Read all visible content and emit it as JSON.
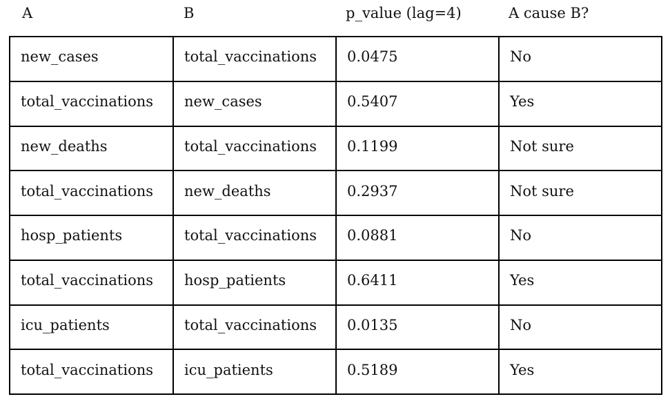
{
  "table": {
    "headers": [
      "A",
      "B",
      "p_value (lag=4)",
      "A cause B?"
    ],
    "rows": [
      [
        "new_cases",
        "total_vaccinations",
        "0.0475",
        "No"
      ],
      [
        "total_vaccinations",
        "new_cases",
        "0.5407",
        "Yes"
      ],
      [
        "new_deaths",
        "total_vaccinations",
        "0.1199",
        "Not sure"
      ],
      [
        "total_vaccinations",
        "new_deaths",
        "0.2937",
        "Not sure"
      ],
      [
        "hosp_patients",
        "total_vaccinations",
        "0.0881",
        "No"
      ],
      [
        "total_vaccinations",
        "hosp_patients",
        "0.6411",
        "Yes"
      ],
      [
        "icu_patients",
        "total_vaccinations",
        "0.0135",
        "No"
      ],
      [
        "total_vaccinations",
        "icu_patients",
        "0.5189",
        "Yes"
      ]
    ]
  },
  "colors": {
    "text": "#111111",
    "border": "#000000",
    "background": "#ffffff"
  }
}
